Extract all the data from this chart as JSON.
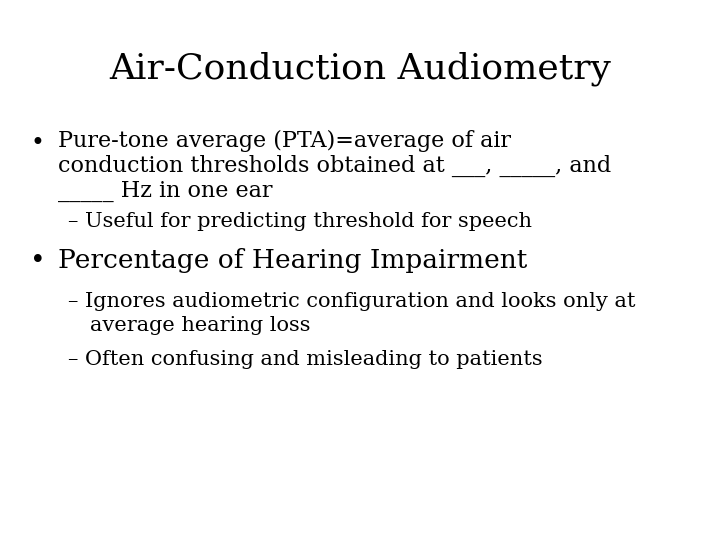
{
  "title": "Air-Conduction Audiometry",
  "background_color": "#ffffff",
  "text_color": "#000000",
  "title_fontsize": 26,
  "body_fontsize": 16,
  "sub_fontsize": 15,
  "bullet2_fontsize": 19,
  "bullet1_line1": "Pure-tone average (PTA)=average of air",
  "bullet1_line2": "conduction thresholds obtained at ___, _____, and",
  "bullet1_line3": "_____ Hz in one ear",
  "sub1_line1": "– Useful for predicting threshold for speech",
  "bullet2": "Percentage of Hearing Impairment",
  "sub2_line1": "– Ignores audiometric configuration and looks only at",
  "sub2_line2": "   average hearing loss",
  "sub2_line3": "– Often confusing and misleading to patients",
  "font_family": "DejaVu Serif"
}
